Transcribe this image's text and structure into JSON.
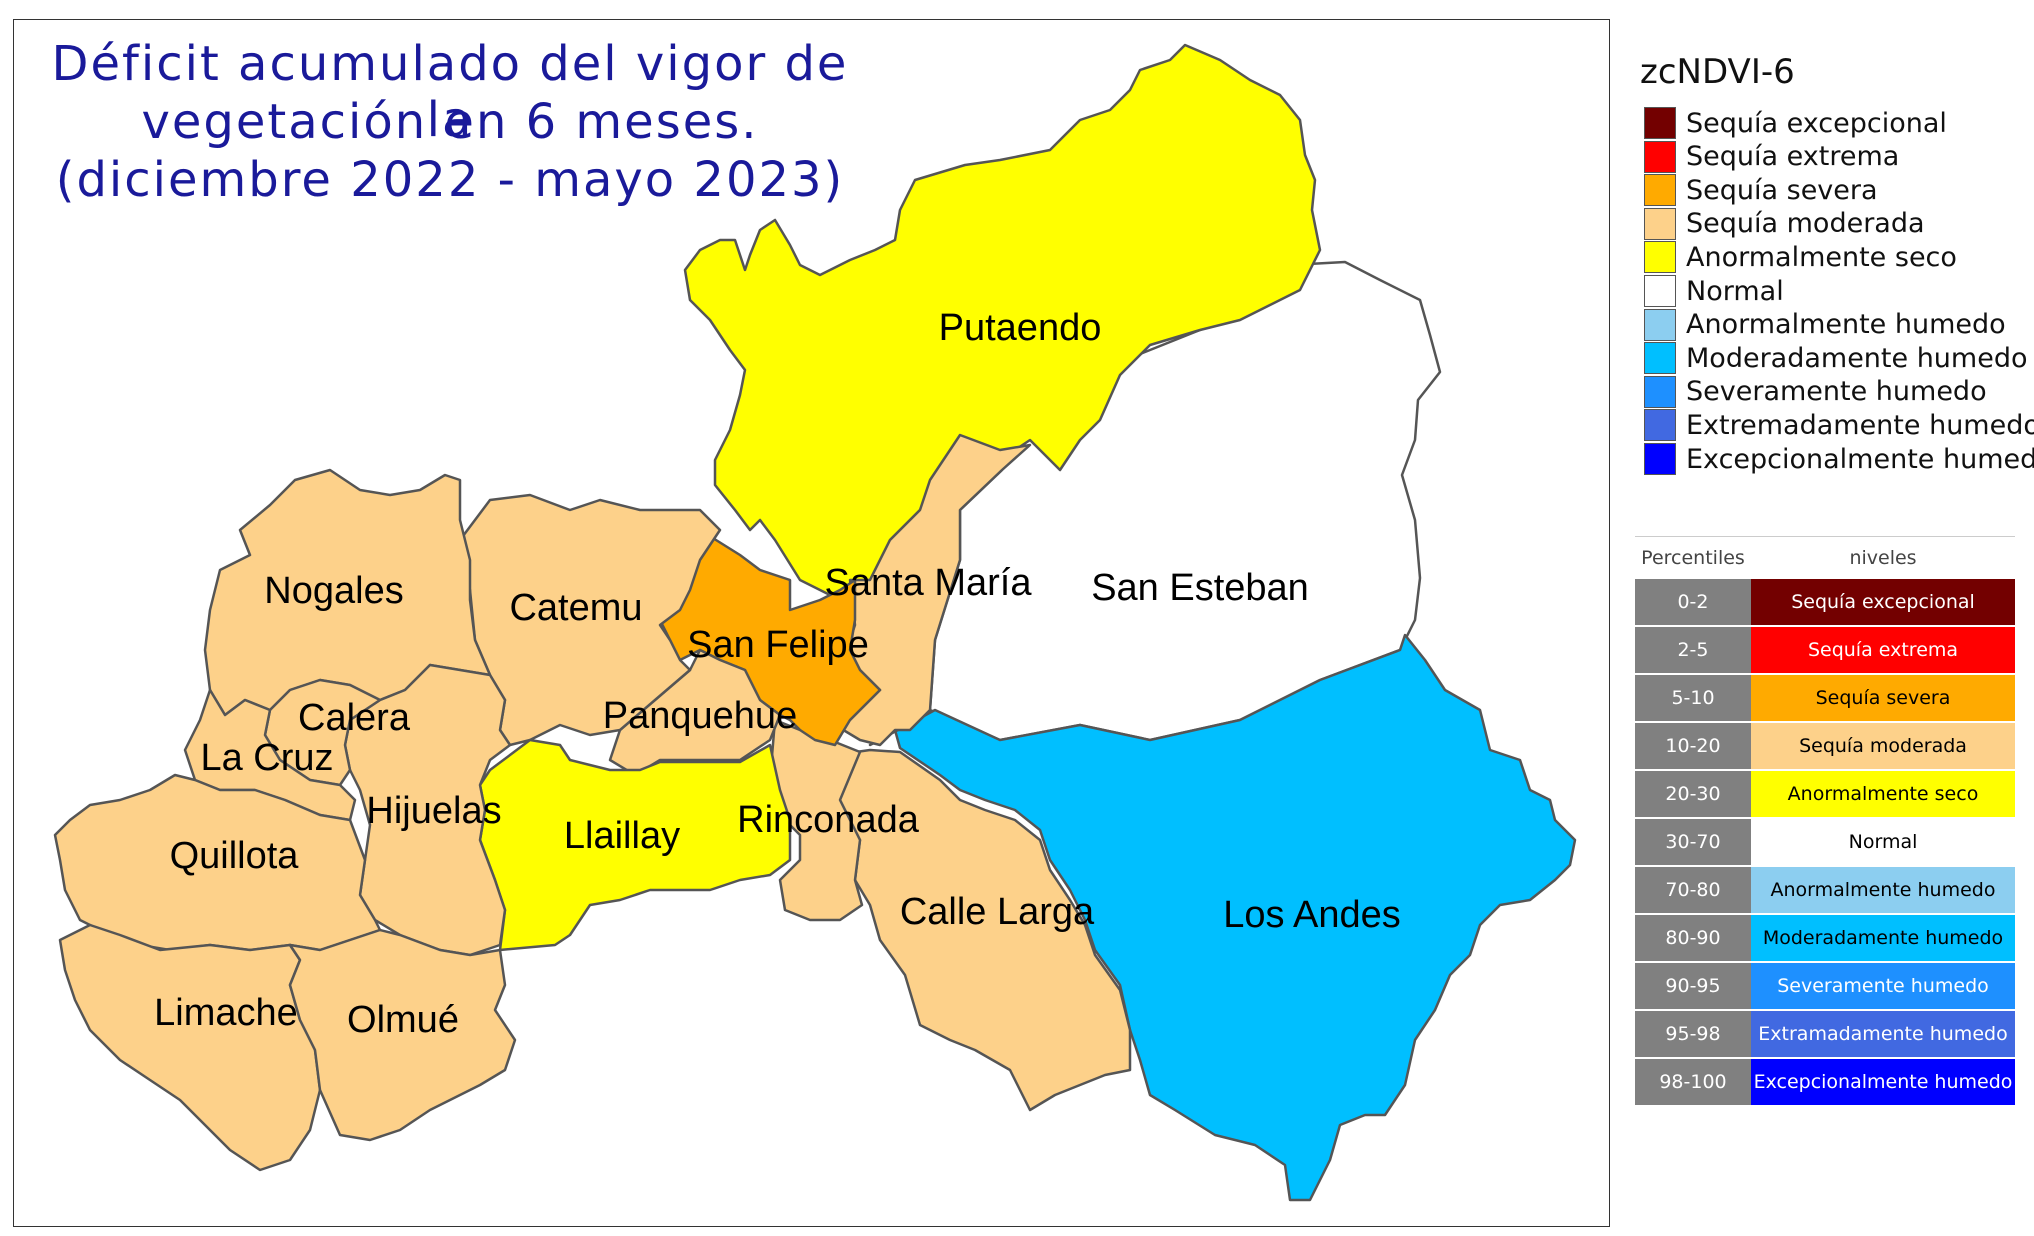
{
  "title": {
    "line1": "Déficit acumulado del vigor de la",
    "line2": "vegetación en 6 meses.",
    "line3": "(diciembre 2022 - mayo 2023)"
  },
  "map": {
    "communes": [
      {
        "name": "Putaendo",
        "class": "Anormalmente seco",
        "color": "#ffff00"
      },
      {
        "name": "San Esteban",
        "class": "Normal",
        "color": "#ffffff"
      },
      {
        "name": "Los Andes",
        "class": "Moderadamente humedo",
        "color": "#00bfff"
      },
      {
        "name": "Santa María",
        "class": "Sequía moderada",
        "color": "#fdd18a"
      },
      {
        "name": "San Felipe",
        "class": "Sequía severa",
        "color": "#ffaa00"
      },
      {
        "name": "Catemu",
        "class": "Sequía moderada",
        "color": "#fdd18a"
      },
      {
        "name": "Panquehue",
        "class": "Sequía moderada",
        "color": "#fdd18a"
      },
      {
        "name": "Llaillay",
        "class": "Anormalmente seco",
        "color": "#ffff00"
      },
      {
        "name": "Rinconada",
        "class": "Sequía moderada",
        "color": "#fdd18a"
      },
      {
        "name": "Calle Larga",
        "class": "Sequía moderada",
        "color": "#fdd18a"
      },
      {
        "name": "Nogales",
        "class": "Sequía moderada",
        "color": "#fdd18a"
      },
      {
        "name": "Calera",
        "class": "Sequía moderada",
        "color": "#fdd18a"
      },
      {
        "name": "La Cruz",
        "class": "Sequía moderada",
        "color": "#fdd18a"
      },
      {
        "name": "Hijuelas",
        "class": "Sequía moderada",
        "color": "#fdd18a"
      },
      {
        "name": "Quillota",
        "class": "Sequía moderada",
        "color": "#fdd18a"
      },
      {
        "name": "Limache",
        "class": "Sequía moderada",
        "color": "#fdd18a"
      },
      {
        "name": "Olmué",
        "class": "Sequía moderada",
        "color": "#fdd18a"
      }
    ]
  },
  "legend": {
    "title": "zcNDVI-6",
    "items": [
      {
        "label": "Sequía excepcional",
        "color": "#730000"
      },
      {
        "label": "Sequía extrema",
        "color": "#ff0000"
      },
      {
        "label": "Sequía severa",
        "color": "#ffaa00"
      },
      {
        "label": "Sequía moderada",
        "color": "#fdd18a"
      },
      {
        "label": "Anormalmente seco",
        "color": "#ffff00"
      },
      {
        "label": "Normal",
        "color": "#ffffff"
      },
      {
        "label": "Anormalmente humedo",
        "color": "#8ccef0"
      },
      {
        "label": "Moderadamente humedo",
        "color": "#00bfff"
      },
      {
        "label": "Severamente humedo",
        "color": "#1e90ff"
      },
      {
        "label": "Extremadamente humedo",
        "color": "#4169e1"
      },
      {
        "label": "Excepcionalmente humedo",
        "color": "#0000ff"
      }
    ]
  },
  "percentile_table": {
    "headers": {
      "percentiles": "Percentiles",
      "levels": "niveles"
    },
    "rows": [
      {
        "range": "0-2",
        "level": "Sequía excepcional",
        "color": "#730000",
        "text_color": "#ffffff"
      },
      {
        "range": "2-5",
        "level": "Sequía extrema",
        "color": "#ff0000",
        "text_color": "#ffffff"
      },
      {
        "range": "5-10",
        "level": "Sequía severa",
        "color": "#ffaa00",
        "text_color": "#000000"
      },
      {
        "range": "10-20",
        "level": "Sequía moderada",
        "color": "#fdd18a",
        "text_color": "#000000"
      },
      {
        "range": "20-30",
        "level": "Anormalmente seco",
        "color": "#ffff00",
        "text_color": "#000000"
      },
      {
        "range": "30-70",
        "level": "Normal",
        "color": "#ffffff",
        "text_color": "#000000"
      },
      {
        "range": "70-80",
        "level": "Anormalmente humedo",
        "color": "#8ccef0",
        "text_color": "#000000"
      },
      {
        "range": "80-90",
        "level": "Moderadamente humedo",
        "color": "#00bfff",
        "text_color": "#000000"
      },
      {
        "range": "90-95",
        "level": "Severamente humedo",
        "color": "#1e90ff",
        "text_color": "#ffffff"
      },
      {
        "range": "95-98",
        "level": "Extramadamente humedo",
        "color": "#4169e1",
        "text_color": "#ffffff"
      },
      {
        "range": "98-100",
        "level": "Excepcionalmente humedo",
        "color": "#0000ff",
        "text_color": "#ffffff"
      }
    ]
  }
}
